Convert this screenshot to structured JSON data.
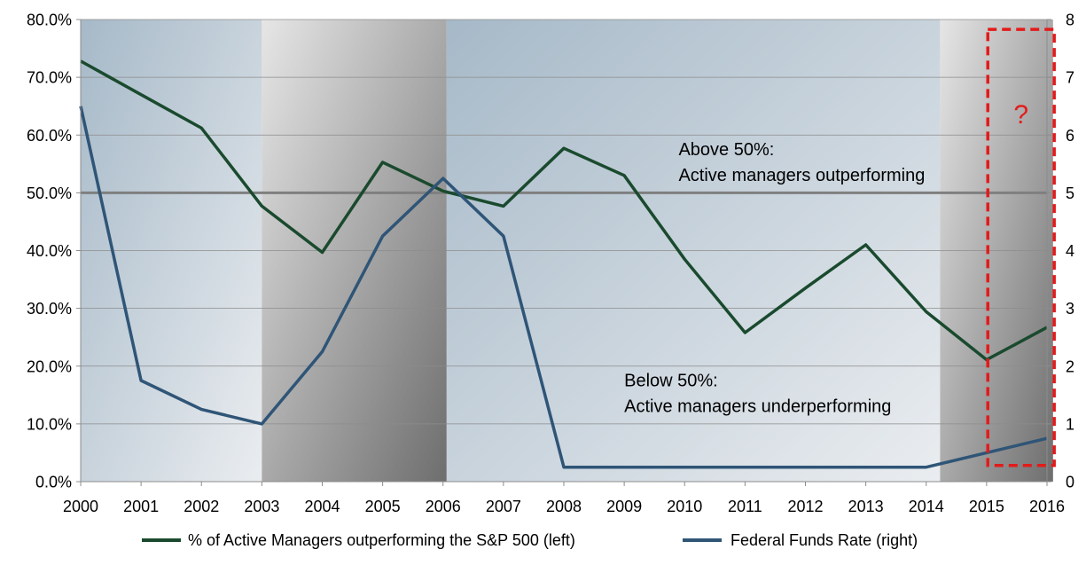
{
  "chart_data": {
    "type": "line",
    "x": [
      2000,
      2001,
      2002,
      2003,
      2004,
      2005,
      2006,
      2007,
      2008,
      2009,
      2010,
      2011,
      2012,
      2013,
      2014,
      2015,
      2016
    ],
    "xlim": [
      2000,
      2016
    ],
    "y_left_lim": [
      0,
      80
    ],
    "y_left_ticks": [
      "0.0%",
      "10.0%",
      "20.0%",
      "30.0%",
      "40.0%",
      "50.0%",
      "60.0%",
      "70.0%",
      "80.0%"
    ],
    "y_right_lim": [
      0,
      8
    ],
    "y_right_ticks": [
      "0",
      "1",
      "2",
      "3",
      "4",
      "5",
      "6",
      "7",
      "8"
    ],
    "series": [
      {
        "name": "% of Active Managers outperforming the S&P 500 (left)",
        "axis": "left",
        "color": "#1a4a2e",
        "values": [
          72.8,
          67.0,
          61.2,
          47.7,
          39.7,
          55.3,
          50.3,
          47.7,
          57.7,
          53.0,
          38.5,
          25.8,
          33.5,
          41.0,
          29.4,
          21.1,
          26.7
        ]
      },
      {
        "name": "Federal Funds Rate (right)",
        "axis": "right",
        "color": "#2f5577",
        "values": [
          6.5,
          1.75,
          1.25,
          1.0,
          2.25,
          4.25,
          5.25,
          4.25,
          0.25,
          0.25,
          0.25,
          0.25,
          0.25,
          0.25,
          0.25,
          0.5,
          0.75
        ]
      }
    ],
    "reference_line": {
      "value": 50,
      "axis": "left",
      "color": "#7f7f7f"
    },
    "shaded_periods": [
      {
        "start": 2000,
        "end": 2003,
        "style": "light-blue"
      },
      {
        "start": 2003,
        "end": 2006.06,
        "style": "gray"
      },
      {
        "start": 2006.06,
        "end": 2014.23,
        "style": "light-blue"
      },
      {
        "start": 2014.23,
        "end": 2016.1,
        "style": "gray"
      }
    ],
    "highlight_box": {
      "x_start": 2015.02,
      "x_end": 2016.12,
      "y_top": 78.3,
      "y_bottom": 2.8,
      "color": "#e31b1b",
      "label": "?"
    },
    "annotations": [
      {
        "lines": [
          "Above 50%:",
          "Active managers outperforming"
        ],
        "x": 2009.9,
        "y": 56.5
      },
      {
        "lines": [
          "Below 50%:",
          "Active managers underperforming"
        ],
        "x": 2009.0,
        "y": 16.5
      }
    ],
    "grid": true,
    "legend_position": "bottom"
  }
}
